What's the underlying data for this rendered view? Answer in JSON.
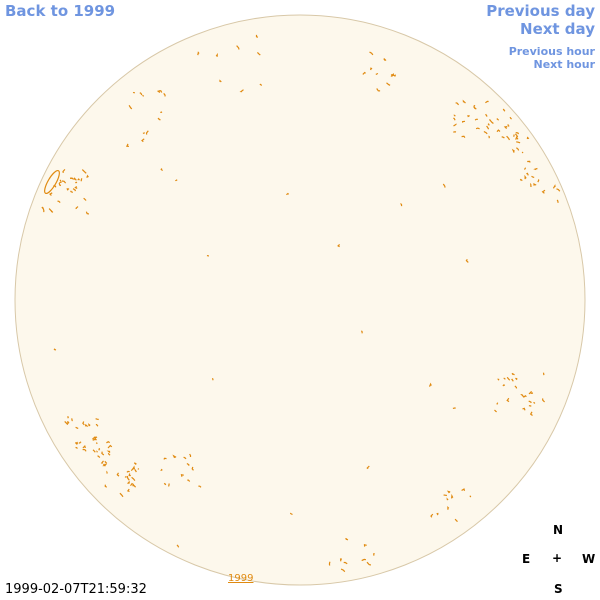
{
  "links": {
    "back": "Back to 1999",
    "previous_day": "Previous day",
    "next_day": "Next day",
    "previous_hour": "Previous hour",
    "next_hour": "Next hour"
  },
  "year_link": "1999",
  "compass": {
    "north": "N",
    "east": "E",
    "center": "+",
    "west": "W",
    "south": "S"
  },
  "timestamp": "1999-02-07T21:59:32"
}
